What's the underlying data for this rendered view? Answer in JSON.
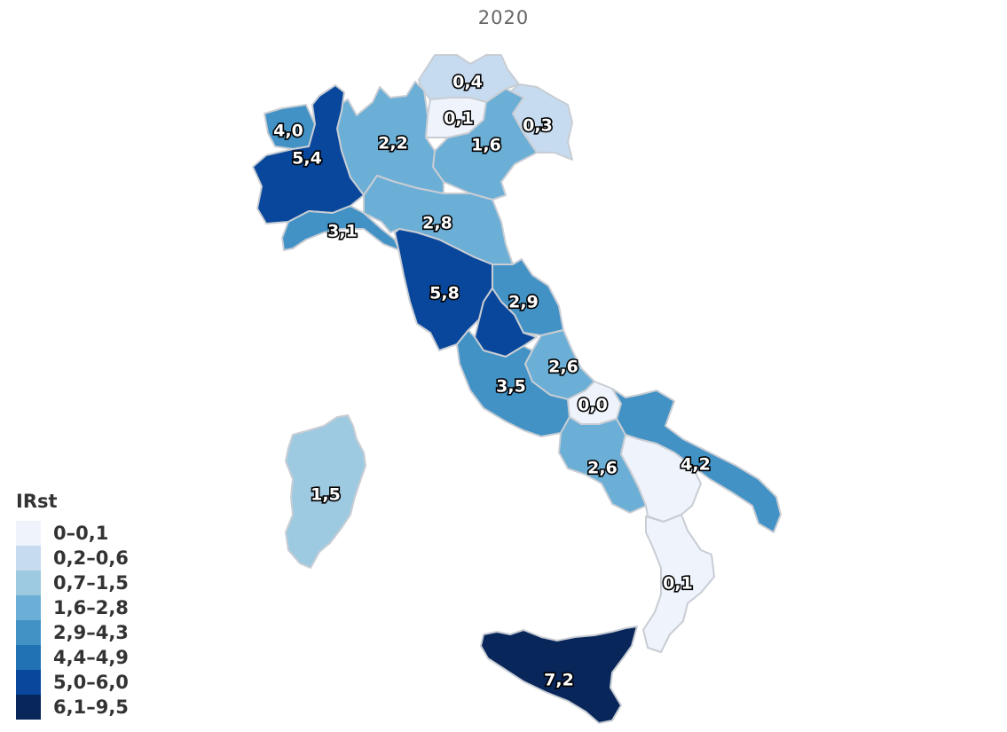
{
  "title": "2020",
  "legend": {
    "title": "IRst",
    "classes": [
      {
        "label": "0–0,1",
        "color": "#eef3fc"
      },
      {
        "label": "0,2–0,6",
        "color": "#c6dbef"
      },
      {
        "label": "0,7–1,5",
        "color": "#9ecae1"
      },
      {
        "label": "1,6–2,8",
        "color": "#6baed6"
      },
      {
        "label": "2,9–4,3",
        "color": "#4292c6"
      },
      {
        "label": "4,4–4,9",
        "color": "#2171b5"
      },
      {
        "label": "5,0–6,0",
        "color": "#08479b"
      },
      {
        "label": "6,1–9,5",
        "color": "#08265a"
      }
    ]
  },
  "regions": [
    {
      "id": "alto-adige",
      "value": "0,4",
      "color": "#c6dbef"
    },
    {
      "id": "trentino",
      "value": "0,1",
      "color": "#eef3fc"
    },
    {
      "id": "friuli",
      "value": "0,3",
      "color": "#c6dbef"
    },
    {
      "id": "veneto",
      "value": "1,6",
      "color": "#6baed6"
    },
    {
      "id": "lombardia",
      "value": "2,2",
      "color": "#6baed6"
    },
    {
      "id": "valle-d-aosta",
      "value": "4,0",
      "color": "#4292c6"
    },
    {
      "id": "piemonte",
      "value": "5,4",
      "color": "#08479b"
    },
    {
      "id": "liguria",
      "value": "3,1",
      "color": "#4292c6"
    },
    {
      "id": "emilia-romagna",
      "value": "2,8",
      "color": "#6baed6"
    },
    {
      "id": "toscana",
      "value": "5,8",
      "color": "#08479b"
    },
    {
      "id": "marche",
      "value": "2,9",
      "color": "#4292c6"
    },
    {
      "id": "umbria",
      "value": "",
      "color": "#08479b"
    },
    {
      "id": "abruzzo",
      "value": "2,6",
      "color": "#6baed6"
    },
    {
      "id": "lazio",
      "value": "3,5",
      "color": "#4292c6"
    },
    {
      "id": "molise",
      "value": "0,0",
      "color": "#eef3fc"
    },
    {
      "id": "campania",
      "value": "2,6",
      "color": "#6baed6"
    },
    {
      "id": "puglia",
      "value": "4,2",
      "color": "#4292c6"
    },
    {
      "id": "basilicata",
      "value": "",
      "color": "#eef3fc"
    },
    {
      "id": "calabria",
      "value": "0,1",
      "color": "#eef3fc"
    },
    {
      "id": "sardegna",
      "value": "1,5",
      "color": "#9ecae1"
    },
    {
      "id": "sicilia",
      "value": "7,2",
      "color": "#08265a"
    }
  ]
}
